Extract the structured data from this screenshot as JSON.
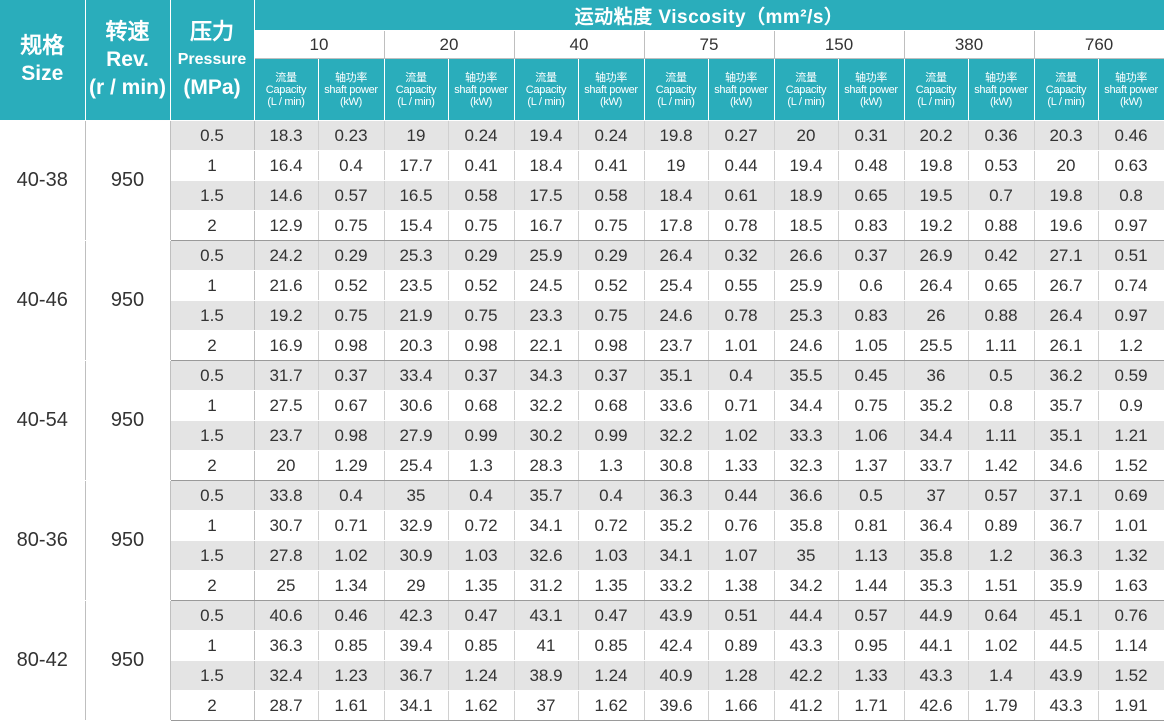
{
  "header": {
    "size_cn": "规格",
    "size_en": "Size",
    "rev_cn": "转速",
    "rev_en": "Rev.",
    "rev_unit": "(r / min)",
    "pressure_cn": "压力",
    "pressure_en": "Pressure",
    "pressure_unit": "(MPa)",
    "viscosity_title": "运动粘度 Viscosity（mm²/s）",
    "viscosities": [
      "10",
      "20",
      "40",
      "75",
      "150",
      "380",
      "760"
    ],
    "capacity_label": [
      "流量",
      "Capacity",
      "(L / min)"
    ],
    "power_label": [
      "轴功率",
      "shaft power",
      "(kW)"
    ]
  },
  "groups": [
    {
      "size": "40-38",
      "rev": "950",
      "rows": [
        {
          "p": "0.5",
          "v": [
            "18.3",
            "0.23",
            "19",
            "0.24",
            "19.4",
            "0.24",
            "19.8",
            "0.27",
            "20",
            "0.31",
            "20.2",
            "0.36",
            "20.3",
            "0.46"
          ]
        },
        {
          "p": "1",
          "v": [
            "16.4",
            "0.4",
            "17.7",
            "0.41",
            "18.4",
            "0.41",
            "19",
            "0.44",
            "19.4",
            "0.48",
            "19.8",
            "0.53",
            "20",
            "0.63"
          ]
        },
        {
          "p": "1.5",
          "v": [
            "14.6",
            "0.57",
            "16.5",
            "0.58",
            "17.5",
            "0.58",
            "18.4",
            "0.61",
            "18.9",
            "0.65",
            "19.5",
            "0.7",
            "19.8",
            "0.8"
          ]
        },
        {
          "p": "2",
          "v": [
            "12.9",
            "0.75",
            "15.4",
            "0.75",
            "16.7",
            "0.75",
            "17.8",
            "0.78",
            "18.5",
            "0.83",
            "19.2",
            "0.88",
            "19.6",
            "0.97"
          ]
        }
      ]
    },
    {
      "size": "40-46",
      "rev": "950",
      "rows": [
        {
          "p": "0.5",
          "v": [
            "24.2",
            "0.29",
            "25.3",
            "0.29",
            "25.9",
            "0.29",
            "26.4",
            "0.32",
            "26.6",
            "0.37",
            "26.9",
            "0.42",
            "27.1",
            "0.51"
          ]
        },
        {
          "p": "1",
          "v": [
            "21.6",
            "0.52",
            "23.5",
            "0.52",
            "24.5",
            "0.52",
            "25.4",
            "0.55",
            "25.9",
            "0.6",
            "26.4",
            "0.65",
            "26.7",
            "0.74"
          ]
        },
        {
          "p": "1.5",
          "v": [
            "19.2",
            "0.75",
            "21.9",
            "0.75",
            "23.3",
            "0.75",
            "24.6",
            "0.78",
            "25.3",
            "0.83",
            "26",
            "0.88",
            "26.4",
            "0.97"
          ]
        },
        {
          "p": "2",
          "v": [
            "16.9",
            "0.98",
            "20.3",
            "0.98",
            "22.1",
            "0.98",
            "23.7",
            "1.01",
            "24.6",
            "1.05",
            "25.5",
            "1.11",
            "26.1",
            "1.2"
          ]
        }
      ]
    },
    {
      "size": "40-54",
      "rev": "950",
      "rows": [
        {
          "p": "0.5",
          "v": [
            "31.7",
            "0.37",
            "33.4",
            "0.37",
            "34.3",
            "0.37",
            "35.1",
            "0.4",
            "35.5",
            "0.45",
            "36",
            "0.5",
            "36.2",
            "0.59"
          ]
        },
        {
          "p": "1",
          "v": [
            "27.5",
            "0.67",
            "30.6",
            "0.68",
            "32.2",
            "0.68",
            "33.6",
            "0.71",
            "34.4",
            "0.75",
            "35.2",
            "0.8",
            "35.7",
            "0.9"
          ]
        },
        {
          "p": "1.5",
          "v": [
            "23.7",
            "0.98",
            "27.9",
            "0.99",
            "30.2",
            "0.99",
            "32.2",
            "1.02",
            "33.3",
            "1.06",
            "34.4",
            "1.11",
            "35.1",
            "1.21"
          ]
        },
        {
          "p": "2",
          "v": [
            "20",
            "1.29",
            "25.4",
            "1.3",
            "28.3",
            "1.3",
            "30.8",
            "1.33",
            "32.3",
            "1.37",
            "33.7",
            "1.42",
            "34.6",
            "1.52"
          ]
        }
      ]
    },
    {
      "size": "80-36",
      "rev": "950",
      "rows": [
        {
          "p": "0.5",
          "v": [
            "33.8",
            "0.4",
            "35",
            "0.4",
            "35.7",
            "0.4",
            "36.3",
            "0.44",
            "36.6",
            "0.5",
            "37",
            "0.57",
            "37.1",
            "0.69"
          ]
        },
        {
          "p": "1",
          "v": [
            "30.7",
            "0.71",
            "32.9",
            "0.72",
            "34.1",
            "0.72",
            "35.2",
            "0.76",
            "35.8",
            "0.81",
            "36.4",
            "0.89",
            "36.7",
            "1.01"
          ]
        },
        {
          "p": "1.5",
          "v": [
            "27.8",
            "1.02",
            "30.9",
            "1.03",
            "32.6",
            "1.03",
            "34.1",
            "1.07",
            "35",
            "1.13",
            "35.8",
            "1.2",
            "36.3",
            "1.32"
          ]
        },
        {
          "p": "2",
          "v": [
            "25",
            "1.34",
            "29",
            "1.35",
            "31.2",
            "1.35",
            "33.2",
            "1.38",
            "34.2",
            "1.44",
            "35.3",
            "1.51",
            "35.9",
            "1.63"
          ]
        }
      ]
    },
    {
      "size": "80-42",
      "rev": "950",
      "rows": [
        {
          "p": "0.5",
          "v": [
            "40.6",
            "0.46",
            "42.3",
            "0.47",
            "43.1",
            "0.47",
            "43.9",
            "0.51",
            "44.4",
            "0.57",
            "44.9",
            "0.64",
            "45.1",
            "0.76"
          ]
        },
        {
          "p": "1",
          "v": [
            "36.3",
            "0.85",
            "39.4",
            "0.85",
            "41",
            "0.85",
            "42.4",
            "0.89",
            "43.3",
            "0.95",
            "44.1",
            "1.02",
            "44.5",
            "1.14"
          ]
        },
        {
          "p": "1.5",
          "v": [
            "32.4",
            "1.23",
            "36.7",
            "1.24",
            "38.9",
            "1.24",
            "40.9",
            "1.28",
            "42.2",
            "1.33",
            "43.3",
            "1.4",
            "43.9",
            "1.52"
          ]
        },
        {
          "p": "2",
          "v": [
            "28.7",
            "1.61",
            "34.1",
            "1.62",
            "37",
            "1.62",
            "39.6",
            "1.66",
            "41.2",
            "1.71",
            "42.6",
            "1.79",
            "43.3",
            "1.91"
          ]
        }
      ]
    }
  ]
}
